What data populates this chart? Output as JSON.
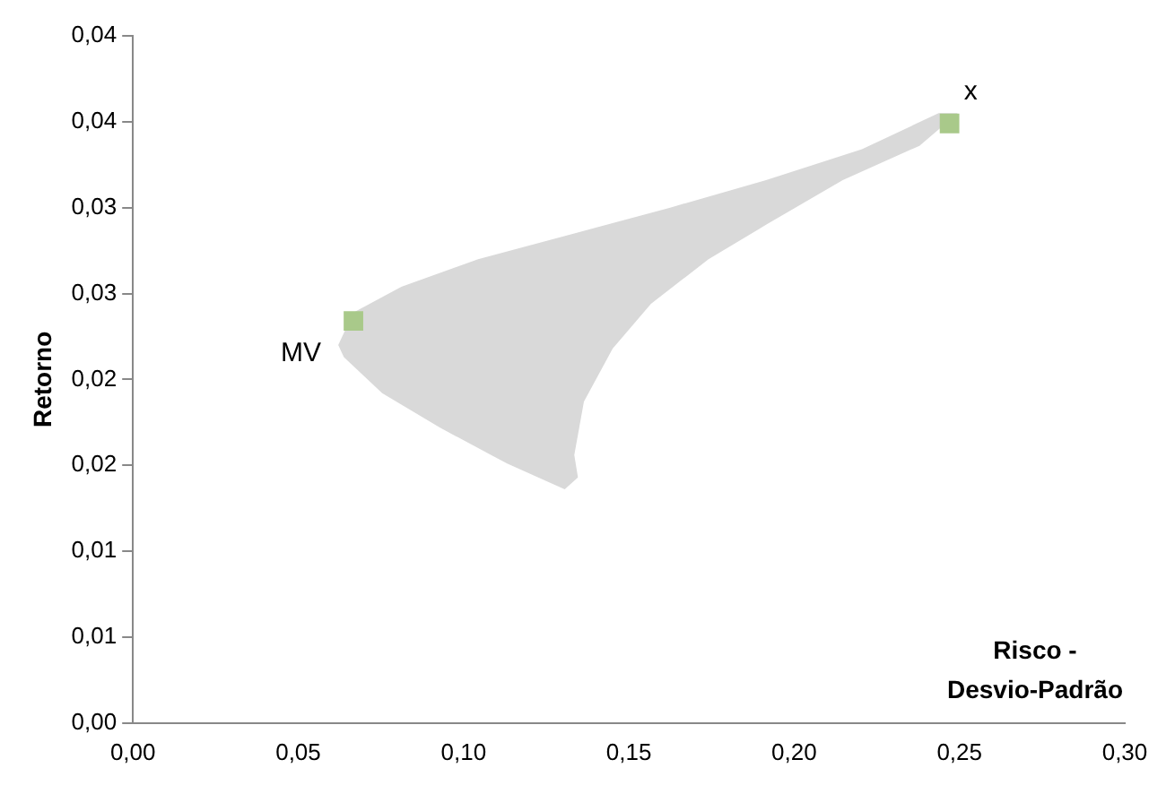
{
  "chart_data": {
    "type": "scatter",
    "ylabel": "Retorno",
    "xlabel": "Risco - Desvio-Padrão",
    "xlim": [
      0,
      0.3
    ],
    "xticks": [
      {
        "value": 0,
        "label": "0,00"
      },
      {
        "value": 0.05,
        "label": "0,05"
      },
      {
        "value": 0.1,
        "label": "0,10"
      },
      {
        "value": 0.15,
        "label": "0,15"
      },
      {
        "value": 0.2,
        "label": "0,20"
      },
      {
        "value": 0.25,
        "label": "0,25"
      },
      {
        "value": 0.3,
        "label": "0,30"
      }
    ],
    "ylim": [
      0,
      0.04
    ],
    "yticks": [
      {
        "value": 0,
        "label": "0,00"
      },
      {
        "value": 0.005,
        "label": "0,01"
      },
      {
        "value": 0.01,
        "label": "0,01"
      },
      {
        "value": 0.015,
        "label": "0,02"
      },
      {
        "value": 0.02,
        "label": "0,02"
      },
      {
        "value": 0.025,
        "label": "0,03"
      },
      {
        "value": 0.03,
        "label": "0,03"
      },
      {
        "value": 0.035,
        "label": "0,04"
      },
      {
        "value": 0.04,
        "label": "0,04"
      }
    ],
    "grid": false,
    "legend": false,
    "series": [
      {
        "type": "area",
        "color": "#d9d9d9",
        "x": [
          0.0621,
          0.0667,
          0.0812,
          0.1044,
          0.1335,
          0.1625,
          0.1915,
          0.2205,
          0.2437,
          0.2495,
          0.2379,
          0.2147,
          0.1915,
          0.1741,
          0.1567,
          0.1451,
          0.1364,
          0.1335,
          0.1346,
          0.1306,
          0.1132,
          0.0928,
          0.0754,
          0.0638
        ],
        "values": [
          0.022,
          0.0239,
          0.0254,
          0.027,
          0.0285,
          0.03,
          0.0316,
          0.0334,
          0.0355,
          0.0355,
          0.0336,
          0.0316,
          0.029,
          0.027,
          0.0244,
          0.0218,
          0.0187,
          0.0156,
          0.0143,
          0.0136,
          0.0151,
          0.0172,
          0.0192,
          0.0213
        ]
      },
      {
        "marker": "square",
        "color": "#a9c98a",
        "x": [
          0.0667,
          0.247
        ],
        "values": [
          0.0234,
          0.0349
        ]
      }
    ],
    "annotations": [
      {
        "text": "MV",
        "x": 0.0667,
        "y": 0.0234
      },
      {
        "text": "x",
        "x": 0.247,
        "y": 0.0349
      }
    ]
  }
}
